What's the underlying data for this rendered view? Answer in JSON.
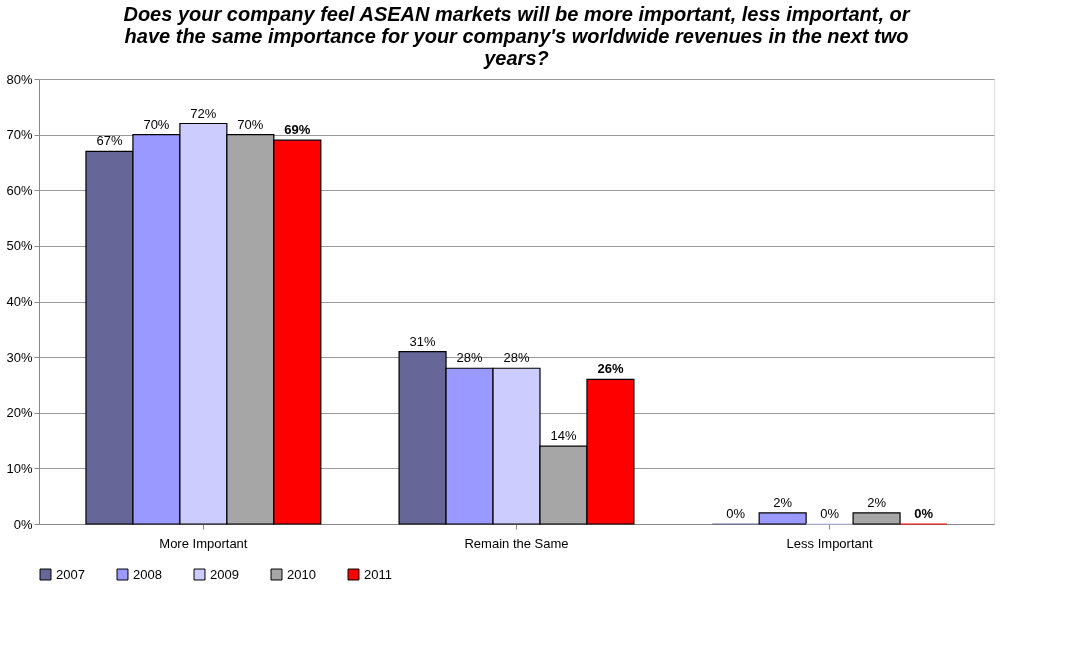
{
  "chart_data": {
    "type": "bar",
    "title": "Does your company feel ASEAN markets will be more important, less important, or have the same importance for your company's worldwide revenues in the next two years?",
    "categories": [
      "More Important",
      "Remain the Same",
      "Less Important"
    ],
    "series": [
      {
        "name": "2007",
        "color": "#666699",
        "values": [
          67,
          31,
          0
        ],
        "value_labels": [
          "67%",
          "31%",
          "0%"
        ]
      },
      {
        "name": "2008",
        "color": "#9999ff",
        "values": [
          70,
          28,
          2
        ],
        "value_labels": [
          "70%",
          "28%",
          "2%"
        ]
      },
      {
        "name": "2009",
        "color": "#ccccff",
        "values": [
          72,
          28,
          0
        ],
        "value_labels": [
          "72%",
          "28%",
          "0%"
        ]
      },
      {
        "name": "2010",
        "color": "#a6a6a6",
        "values": [
          70,
          14,
          2
        ],
        "value_labels": [
          "70%",
          "14%",
          "2%"
        ]
      },
      {
        "name": "2011",
        "color": "#ff0000",
        "values": [
          69,
          26,
          0
        ],
        "value_labels": [
          "69%",
          "26%",
          "0%"
        ]
      }
    ],
    "ylim": [
      0,
      80
    ],
    "yticks": [
      {
        "value": 0,
        "label": "0%"
      },
      {
        "value": 10,
        "label": "10%"
      },
      {
        "value": 20,
        "label": "20%"
      },
      {
        "value": 30,
        "label": "30%"
      },
      {
        "value": 40,
        "label": "40%"
      },
      {
        "value": 50,
        "label": "50%"
      },
      {
        "value": 60,
        "label": "60%"
      },
      {
        "value": 70,
        "label": "70%"
      },
      {
        "value": 80,
        "label": "80%"
      }
    ],
    "grid": "y",
    "legend": "bottom"
  }
}
